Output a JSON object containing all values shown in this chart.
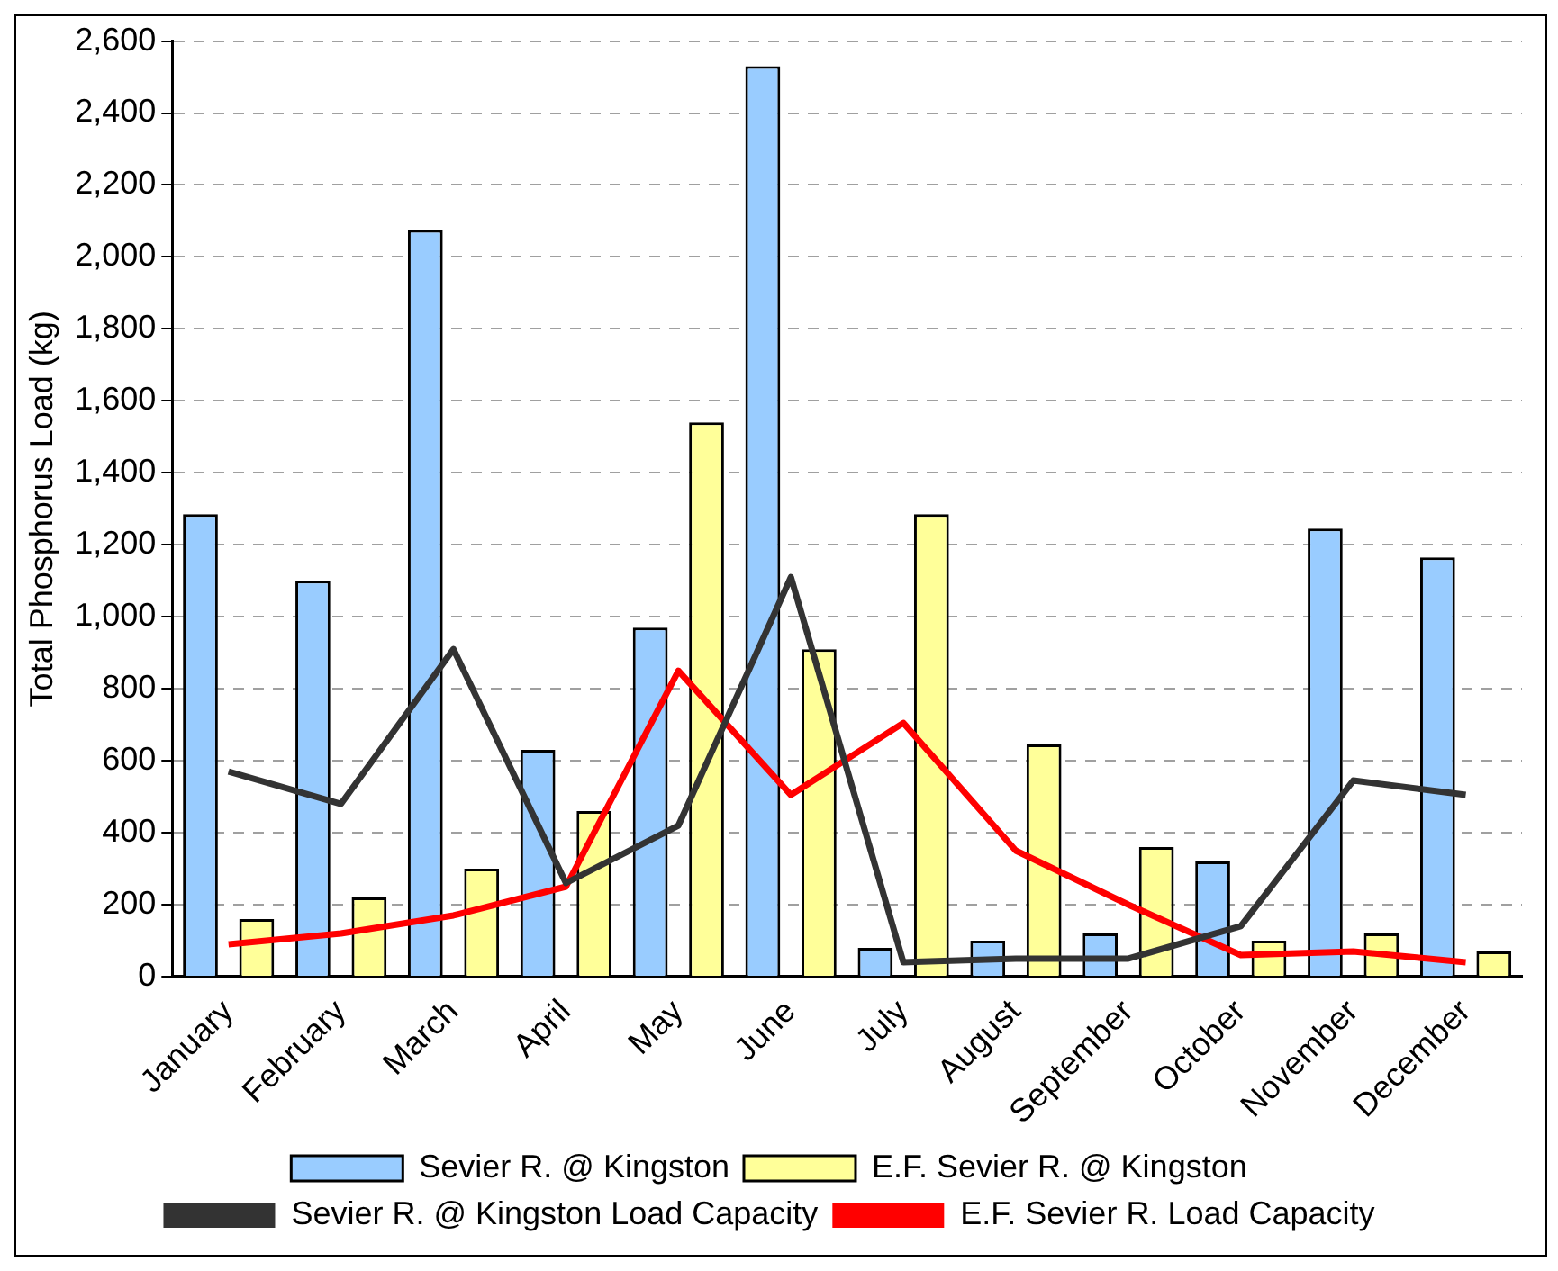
{
  "chart_data": {
    "type": "bar",
    "ylabel": "Total Phosphorus Load (kg)",
    "categories": [
      "January",
      "February",
      "March",
      "April",
      "May",
      "June",
      "July",
      "August",
      "September",
      "October",
      "November",
      "December"
    ],
    "series": [
      {
        "name": "Sevier R. @ Kingston",
        "color": "#99ccff",
        "values": [
          1285,
          1100,
          2075,
          630,
          970,
          2530,
          80,
          100,
          120,
          320,
          1245,
          1165
        ]
      },
      {
        "name": "E.F. Sevier R. @ Kingston",
        "color": "#ffff99",
        "values": [
          160,
          220,
          300,
          460,
          1540,
          910,
          1285,
          645,
          360,
          100,
          120,
          70
        ]
      },
      {
        "name": "Sevier R. @ Kingston Load Capacity",
        "type": "line",
        "color": "#333333",
        "values": [
          570,
          480,
          910,
          260,
          420,
          1110,
          40,
          50,
          50,
          140,
          545,
          505
        ]
      },
      {
        "name": "E.F. Sevier R. Load Capacity",
        "type": "line",
        "color": "#ff0000",
        "values": [
          90,
          120,
          170,
          250,
          850,
          505,
          705,
          350,
          200,
          60,
          70,
          40
        ]
      }
    ],
    "ylim": [
      0,
      2600
    ],
    "yticks": [
      0,
      200,
      400,
      600,
      800,
      {
        "value": 1000,
        "label": "1,000"
      },
      {
        "value": 1200,
        "label": "1,200"
      },
      {
        "value": 1400,
        "label": "1,400"
      },
      {
        "value": 1600,
        "label": "1,600"
      },
      {
        "value": 1800,
        "label": "1,800"
      },
      {
        "value": 2000,
        "label": "2,000"
      },
      {
        "value": 2200,
        "label": "2,200"
      },
      {
        "value": 2400,
        "label": "2,400"
      },
      {
        "value": 2600,
        "label": "2,600"
      }
    ],
    "grid": "y",
    "legend": "bottom",
    "marker": "none",
    "line_style": "solid"
  }
}
